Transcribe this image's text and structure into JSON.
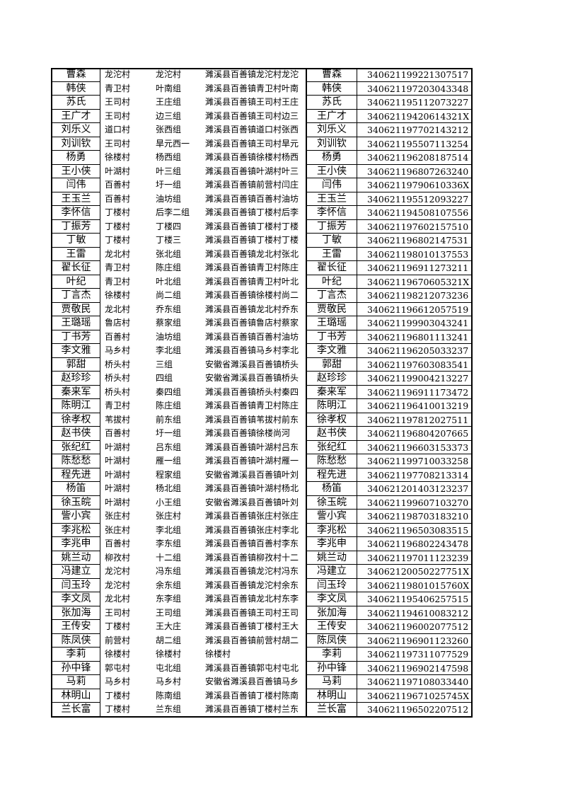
{
  "table": {
    "rows": [
      [
        "曹森",
        "龙沱村",
        "龙沱村",
        "濉溪县百善镇龙沱村龙沱",
        "曹森",
        "340621199221307517"
      ],
      [
        "韩侠",
        "青卫村",
        "叶南组",
        "濉溪县百善镇青卫村叶南",
        "韩侠",
        "340621197203043348"
      ],
      [
        "苏氏",
        "王司村",
        "王庄组",
        "濉溪县百善镇王司村王庄",
        "苏氏",
        "340621195112073227"
      ],
      [
        "王广才",
        "王司村",
        "边三组",
        "濉溪县百善镇王司村边三",
        "王广才",
        "34062119420614321X"
      ],
      [
        "刘乐义",
        "道口村",
        "张西组",
        "濉溪县百善镇道口村张西",
        "刘乐义",
        "340621197702143212"
      ],
      [
        "刘训钦",
        "王司村",
        "旱元西一",
        "濉溪县百善镇王司村旱元",
        "刘训钦",
        "340621195507113254"
      ],
      [
        "杨勇",
        "徐楼村",
        "杨西组",
        "濉溪县百善镇徐楼村杨西",
        "杨勇",
        "340621196208187514"
      ],
      [
        "王小侠",
        "叶湖村",
        "叶三组",
        "濉溪县百善镇叶湖村叶三",
        "王小侠",
        "340621196807263240"
      ],
      [
        "闫伟",
        "百善村",
        "圩一组",
        "濉溪县百善镇前营村闫庄",
        "闫伟",
        "34062119790610336X"
      ],
      [
        "王玉兰",
        "百善村",
        "油坊组",
        "濉溪县百善镇百善村油坊",
        "王玉兰",
        "340621195512093227"
      ],
      [
        "李怀信",
        "丁楼村",
        "后李二组",
        "濉溪县百善镇丁楼村后李",
        "李怀信",
        "340621194508107556"
      ],
      [
        "丁振芳",
        "丁楼村",
        "丁楼四",
        "濉溪县百善镇丁楼村丁楼",
        "丁振芳",
        "340621197602157510"
      ],
      [
        "丁敏",
        "丁楼村",
        "丁楼三",
        "濉溪县百善镇丁楼村丁楼",
        "丁敏",
        "340621196802147531"
      ],
      [
        "王雷",
        "龙北村",
        "张北组",
        "濉溪县百善镇龙北村张北",
        "王雷",
        "340621198010137553"
      ],
      [
        "翟长征",
        "青卫村",
        "陈庄组",
        "濉溪县百善镇青卫村陈庄",
        "翟长征",
        "340621196911273211"
      ],
      [
        "叶纪",
        "青卫村",
        "叶北组",
        "濉溪县百善镇青卫村叶北",
        "叶纪",
        "34062119670605321X"
      ],
      [
        "丁言杰",
        "徐楼村",
        "尚二组",
        "濉溪县百善镇徐楼村尚二",
        "丁言杰",
        "340621198212073236"
      ],
      [
        "贾敬民",
        "龙北村",
        "乔东组",
        "濉溪县百善镇龙北村乔东",
        "贾敬民",
        "340621196612057519"
      ],
      [
        "王璐瑶",
        "鲁店村",
        "蔡家组",
        "濉溪县百善镇鲁店村蔡家",
        "王璐瑶",
        "340621199903043241"
      ],
      [
        "丁书芳",
        "百善村",
        "油坊组",
        "濉溪县百善镇百善村油坊",
        "丁书芳",
        "340621196801113241"
      ],
      [
        "李文雅",
        "马乡村",
        "李北组",
        "濉溪县百善镇马乡村李北",
        "李文雅",
        "340621196205033237"
      ],
      [
        "郭甜",
        "桥头村",
        "三组",
        "安徽省濉溪县百善镇桥头",
        "郭甜",
        "340621197603083541"
      ],
      [
        "赵珍珍",
        "桥头村",
        "四组",
        "安徽省濉溪县百善镇桥头",
        "赵珍珍",
        "340621199004213227"
      ],
      [
        "秦来军",
        "桥头村",
        "秦四组",
        "濉溪县百善镇桥头村秦四",
        "秦来军",
        "340621196911173472"
      ],
      [
        "陈明江",
        "青卫村",
        "陈庄组",
        "濉溪县百善镇青卫村陈庄",
        "陈明江",
        "340621196410013219"
      ],
      [
        "徐孝权",
        "苇拔村",
        "前东组",
        "濉溪县百善镇苇拔村前东",
        "徐孝权",
        "340621197812027511"
      ],
      [
        "赵书侠",
        "百善村",
        "圩一组",
        "濉溪县百善镇徐楼尚河",
        "赵书侠",
        "340621196804207665"
      ],
      [
        "张纪红",
        "叶湖村",
        "吕东组",
        "濉溪县百善镇叶湖村吕东",
        "张纪红",
        "340621196603153373"
      ],
      [
        "陈愁愁",
        "叶湖村",
        "雁一组",
        "濉溪县百善镇叶湖村雁一",
        "陈愁愁",
        "340621199710033258"
      ],
      [
        "程先进",
        "叶湖村",
        "程家组",
        "安徽省濉溪县百善镇叶刘",
        "程先进",
        "340621197708213314"
      ],
      [
        "杨笛",
        "叶湖村",
        "杨北组",
        "濉溪县百善镇叶湖村杨北",
        "杨笛",
        "340621201403123237"
      ],
      [
        "徐玉皖",
        "叶湖村",
        "小王组",
        "安徽省濉溪县百善镇叶刘",
        "徐玉皖",
        "340621199607103270"
      ],
      [
        "訾小宾",
        "张庄村",
        "张庄村",
        "濉溪县百善镇张庄村张庄",
        "訾小宾",
        "340621198703183210"
      ],
      [
        "李兆松",
        "张庄村",
        "李北组",
        "濉溪县百善镇张庄村李北",
        "李兆松",
        "340621196503083515"
      ],
      [
        "李兆申",
        "百善村",
        "李东组",
        "濉溪县百善镇百善村李东",
        "李兆申",
        "340621196802243478"
      ],
      [
        "姚兰动",
        "柳孜村",
        "十二组",
        "濉溪县百善镇柳孜村十二",
        "姚兰动",
        "340621197011123239"
      ],
      [
        "冯建立",
        "龙沱村",
        "冯东组",
        "濉溪县百善镇龙沱村冯东",
        "冯建立",
        "34062120050227751X"
      ],
      [
        "闫玉玲",
        "龙沱村",
        "余东组",
        "濉溪县百善镇龙沱村余东",
        "闫玉玲",
        "34062119801015760X"
      ],
      [
        "李文凤",
        "龙北村",
        "东李组",
        "濉溪县百善镇龙北村东李",
        "李文凤",
        "340621195406257515"
      ],
      [
        "张加海",
        "王司村",
        "王司组",
        "濉溪县百善镇王司村王司",
        "张加海",
        "340621194610083212"
      ],
      [
        "王传安",
        "丁楼村",
        "王大庄",
        "濉溪县百善镇丁楼村王大",
        "王传安",
        "340621196002077512"
      ],
      [
        "陈凤侠",
        "前营村",
        "胡二组",
        "濉溪县百善镇前营村胡二",
        "陈凤侠",
        "340621196901123260"
      ],
      [
        "李莉",
        "徐楼村",
        "徐楼村",
        "徐楼村",
        "李莉",
        "340621197311077529"
      ],
      [
        "孙中锋",
        "郭屯村",
        "屯北组",
        "濉溪县百善镇郭屯村屯北",
        "孙中锋",
        "340621196902147598"
      ],
      [
        "马莉",
        "马乡村",
        "马乡村",
        "安徽省濉溪县百善镇马乡",
        "马莉",
        "340621197108033440"
      ],
      [
        "林明山",
        "丁楼村",
        "陈南组",
        "濉溪县百善镇丁楼村陈南",
        "林明山",
        "34062119671025745X"
      ],
      [
        "兰长富",
        "丁楼村",
        "兰东组",
        "濉溪县百善镇丁楼村兰东",
        "兰长富",
        "340621196502207512"
      ]
    ]
  }
}
